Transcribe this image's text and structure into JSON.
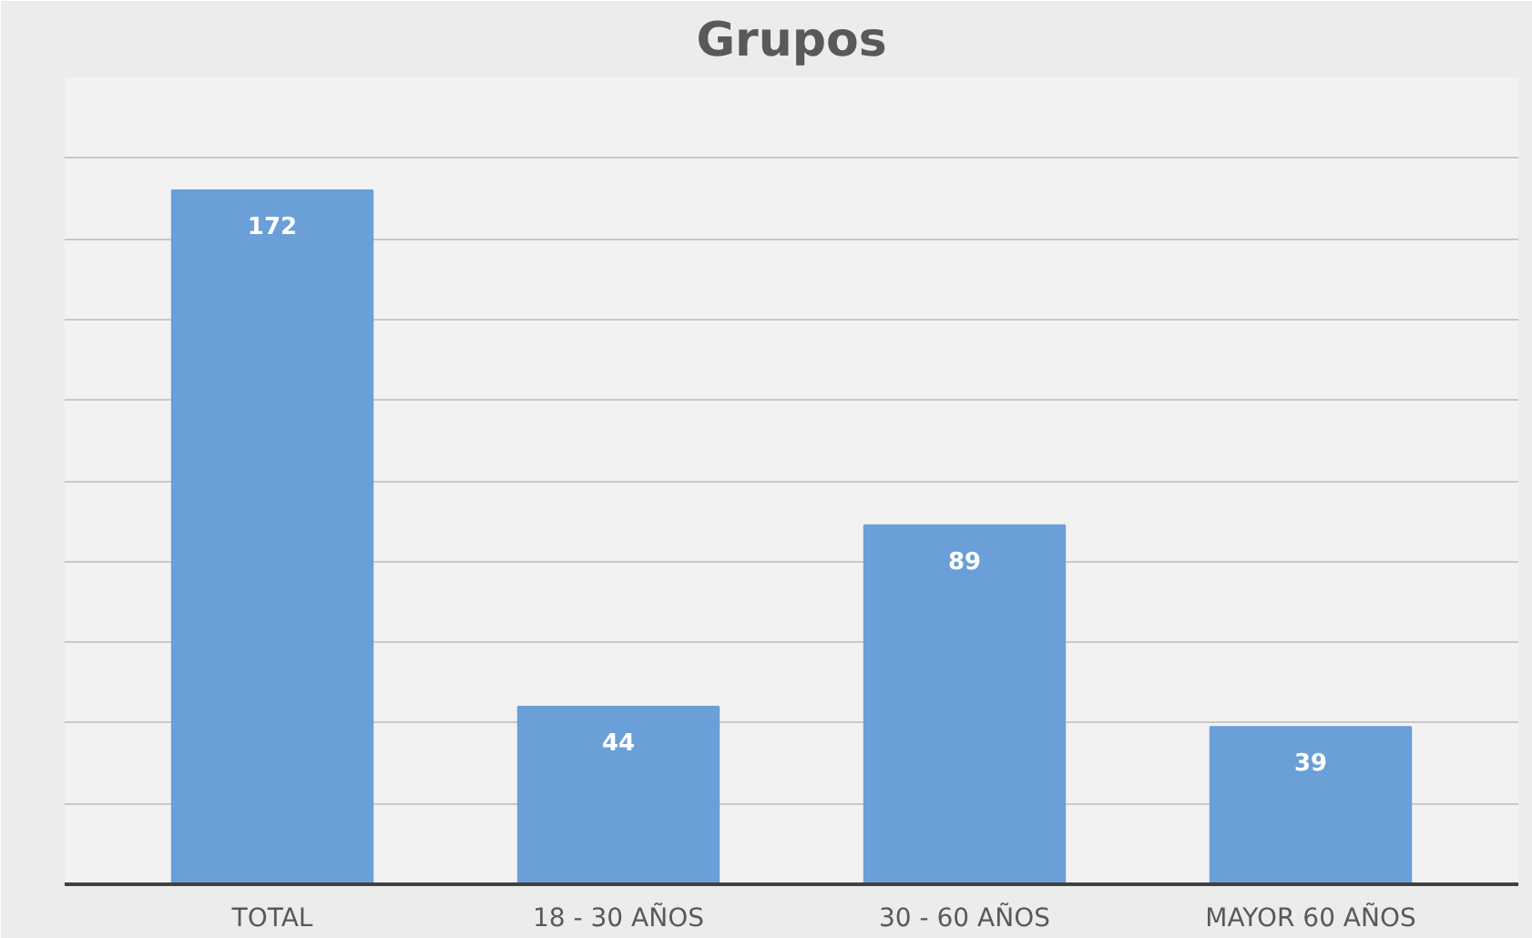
{
  "chart_data": {
    "type": "bar",
    "title": "Grupos",
    "categories": [
      "TOTAL",
      "18 - 30 AÑOS",
      "30 - 60 AÑOS",
      "MAYOR 60 AÑOS"
    ],
    "values": [
      172,
      44,
      89,
      39
    ],
    "color": "#6a9fd8",
    "ylim": [
      0,
      200
    ],
    "yticks": [
      {
        "value": 0,
        "label": null
      },
      {
        "value": 20,
        "label": null
      },
      {
        "value": 40,
        "label": null
      },
      {
        "value": 60,
        "label": null
      },
      {
        "value": 80,
        "label": null
      },
      {
        "value": 100,
        "label": null
      },
      {
        "value": 120,
        "label": null
      },
      {
        "value": 140,
        "label": null
      },
      {
        "value": 160,
        "label": null
      },
      {
        "value": 180,
        "label": null
      },
      {
        "value": 200,
        "label": null
      }
    ],
    "grid": "y",
    "tick_labels": "x",
    "data_labels": true
  }
}
